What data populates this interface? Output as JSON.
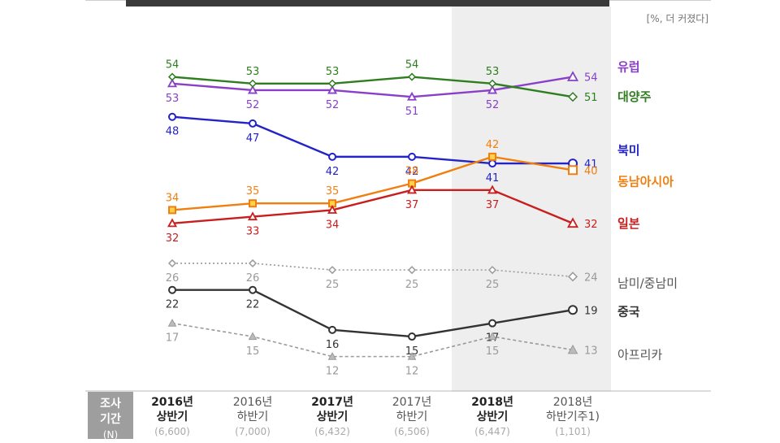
{
  "unit_note": "[%, 더 커졌다]",
  "footer": {
    "label_line1": "조사",
    "label_line2": "기간",
    "label_line3": "(N)",
    "periods": [
      {
        "year": "2016년",
        "half": "상반기",
        "n": "(6,600)",
        "bold": true
      },
      {
        "year": "2016년",
        "half": "하반기",
        "n": "(7,000)",
        "bold": false
      },
      {
        "year": "2017년",
        "half": "상반기",
        "n": "(6,432)",
        "bold": true
      },
      {
        "year": "2017년",
        "half": "하반기",
        "n": "(6,506)",
        "bold": false
      },
      {
        "year": "2018년",
        "half": "상반기",
        "n": "(6,447)",
        "bold": true
      },
      {
        "year": "2018년",
        "half": "하반기주1)",
        "n": "(1,101)",
        "bold": false
      }
    ]
  },
  "chart_data": {
    "type": "line",
    "categories": [
      "2016년 상반기",
      "2016년 하반기",
      "2017년 상반기",
      "2017년 하반기",
      "2018년 상반기",
      "2018년 하반기"
    ],
    "highlighted_category": "2018년 상반기",
    "ylim": [
      10,
      57
    ],
    "series": [
      {
        "name": "유럽",
        "values": [
          53,
          52,
          52,
          51,
          52,
          54
        ],
        "color": "#8a3fc8",
        "marker": "triangle",
        "dash": false,
        "label_side": "below",
        "bold_label": true
      },
      {
        "name": "대양주",
        "values": [
          54,
          53,
          53,
          54,
          53,
          51
        ],
        "color": "#2e7d1e",
        "marker": "diamond",
        "dash": false,
        "label_side": "above",
        "bold_label": true
      },
      {
        "name": "북미",
        "values": [
          48,
          47,
          42,
          42,
          41,
          41
        ],
        "color": "#2323c8",
        "marker": "circle",
        "dash": false,
        "label_side": "below",
        "bold_label": true
      },
      {
        "name": "동남아시아",
        "values": [
          34,
          35,
          35,
          38,
          42,
          40
        ],
        "color": "#f07f10",
        "marker": "square",
        "dash": false,
        "label_side": "above",
        "bold_label": true
      },
      {
        "name": "일본",
        "values": [
          32,
          33,
          34,
          37,
          37,
          32
        ],
        "color": "#c81e1e",
        "marker": "triangle",
        "dash": false,
        "label_side": "below",
        "bold_label": true
      },
      {
        "name": "남미/중남미",
        "values": [
          26,
          26,
          25,
          25,
          25,
          24
        ],
        "color": "#9a9a9a",
        "marker": "diamond",
        "dash": true,
        "dasharray": "2,3",
        "label_side": "below",
        "bold_label": false
      },
      {
        "name": "중국",
        "values": [
          22,
          22,
          16,
          15,
          17,
          19
        ],
        "color": "#333333",
        "marker": "circle",
        "dash": false,
        "label_side": "below",
        "bold_label": true
      },
      {
        "name": "아프리카",
        "values": [
          17,
          15,
          12,
          12,
          15,
          13
        ],
        "color": "#9a9a9a",
        "marker": "triangle",
        "dash": true,
        "dasharray": "4,3",
        "label_side": "below",
        "bold_label": false
      }
    ]
  }
}
